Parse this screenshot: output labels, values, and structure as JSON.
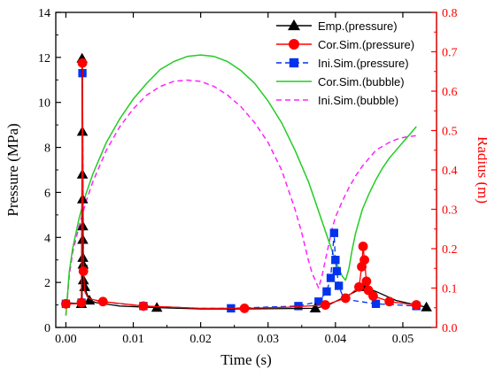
{
  "chart_data": {
    "type": "line",
    "xlabel": "Time (s)",
    "ylabel_left": "Pressure (MPa)",
    "ylabel_right": "Radius (m)",
    "xlim": [
      -0.0015,
      0.055
    ],
    "ylim_left": [
      0,
      14
    ],
    "ylim_right": [
      0,
      0.8
    ],
    "x_ticks": [
      0.0,
      0.01,
      0.02,
      0.03,
      0.04,
      0.05
    ],
    "x_tick_labels": [
      "0.00",
      "0.01",
      "0.02",
      "0.03",
      "0.04",
      "0.05"
    ],
    "y_left_ticks": [
      0,
      2,
      4,
      6,
      8,
      10,
      12,
      14
    ],
    "y_left_tick_labels": [
      "0",
      "2",
      "4",
      "6",
      "8",
      "10",
      "12",
      "14"
    ],
    "y_right_ticks": [
      0.0,
      0.1,
      0.2,
      0.3,
      0.4,
      0.5,
      0.6,
      0.7,
      0.8
    ],
    "y_right_tick_labels": [
      "0.0",
      "0.1",
      "0.2",
      "0.3",
      "0.4",
      "0.5",
      "0.6",
      "0.7",
      "0.8"
    ],
    "grid": false,
    "legend_position": "top-right",
    "colors": {
      "left_axis": "#000000",
      "right_axis": "#ff0000"
    },
    "series": [
      {
        "name": "Emp.(pressure)",
        "axis": "left",
        "color": "#000000",
        "line_style": "solid",
        "marker": "triangle",
        "x": [
          0.0,
          0.0023,
          0.0024,
          0.0024,
          0.00245,
          0.00245,
          0.00248,
          0.0025,
          0.0025,
          0.00252,
          0.00255,
          0.0026,
          0.0028,
          0.003,
          0.0035,
          0.0045,
          0.008,
          0.0135,
          0.02,
          0.0265,
          0.037,
          0.039,
          0.041,
          0.043,
          0.0442,
          0.046,
          0.049,
          0.052,
          0.0535
        ],
        "y": [
          1.1,
          1.05,
          1.05,
          11.95,
          8.7,
          6.8,
          5.7,
          4.5,
          3.9,
          3.1,
          2.8,
          2.1,
          1.8,
          1.6,
          1.2,
          1.1,
          0.95,
          0.88,
          0.82,
          0.82,
          0.85,
          1.0,
          1.3,
          1.6,
          1.8,
          1.6,
          1.2,
          1.0,
          0.9
        ],
        "marker_x": [
          0.0023,
          0.0024,
          0.00245,
          0.00245,
          0.00248,
          0.0025,
          0.0025,
          0.00252,
          0.00255,
          0.0026,
          0.0028,
          0.0035,
          0.0135,
          0.037,
          0.0442,
          0.0535
        ],
        "marker_y": [
          1.05,
          11.95,
          8.7,
          6.8,
          5.7,
          4.5,
          3.9,
          3.1,
          2.8,
          2.1,
          1.8,
          1.2,
          0.88,
          0.85,
          1.8,
          0.9
        ]
      },
      {
        "name": "Cor.Sim.(pressure)",
        "axis": "left",
        "color": "#ff0000",
        "line_style": "solid",
        "marker": "circle",
        "x": [
          0.0,
          0.0021,
          0.0023,
          0.00245,
          0.0026,
          0.0028,
          0.0032,
          0.0038,
          0.0055,
          0.0115,
          0.02,
          0.0265,
          0.033,
          0.0385,
          0.0415,
          0.0435,
          0.0439,
          0.0441,
          0.0443,
          0.0446,
          0.0449,
          0.0456,
          0.048,
          0.052
        ],
        "y": [
          1.05,
          1.05,
          1.1,
          11.75,
          2.5,
          1.6,
          1.35,
          1.25,
          1.15,
          0.95,
          0.85,
          0.85,
          0.9,
          1.0,
          1.3,
          1.8,
          2.7,
          3.6,
          3.0,
          2.05,
          1.65,
          1.4,
          1.15,
          1.0
        ],
        "marker_x": [
          0.0,
          0.0023,
          0.00245,
          0.0026,
          0.0055,
          0.0115,
          0.0265,
          0.0385,
          0.0415,
          0.0435,
          0.0439,
          0.0441,
          0.0443,
          0.0446,
          0.0449,
          0.0456,
          0.048,
          0.052
        ],
        "marker_y": [
          1.05,
          1.1,
          11.75,
          2.5,
          1.15,
          0.95,
          0.85,
          1.0,
          1.3,
          1.8,
          2.7,
          3.6,
          3.0,
          2.05,
          1.65,
          1.4,
          1.15,
          1.0
        ]
      },
      {
        "name": "Ini.Sim.(pressure)",
        "axis": "left",
        "color": "#0033ee",
        "line_style": "dash",
        "marker": "square",
        "x": [
          0.0,
          0.0021,
          0.00232,
          0.00245,
          0.0026,
          0.0028,
          0.0035,
          0.005,
          0.0115,
          0.02,
          0.0245,
          0.0345,
          0.0375,
          0.0387,
          0.0393,
          0.0398,
          0.04,
          0.0402,
          0.0405,
          0.041,
          0.0425,
          0.046,
          0.052
        ],
        "y": [
          1.05,
          1.05,
          1.1,
          11.3,
          2.6,
          1.7,
          1.3,
          1.15,
          0.95,
          0.85,
          0.85,
          0.95,
          1.15,
          1.6,
          2.2,
          4.2,
          3.0,
          2.5,
          1.85,
          1.45,
          1.2,
          1.05,
          0.95
        ],
        "marker_x": [
          0.0,
          0.00232,
          0.00245,
          0.0026,
          0.0115,
          0.0245,
          0.0345,
          0.0375,
          0.0387,
          0.0393,
          0.0398,
          0.04,
          0.0402,
          0.0405,
          0.046,
          0.052
        ],
        "marker_y": [
          1.05,
          1.1,
          11.3,
          2.6,
          0.95,
          0.85,
          0.95,
          1.15,
          1.6,
          2.2,
          4.2,
          3.0,
          2.5,
          1.85,
          1.05,
          0.95
        ]
      },
      {
        "name": "Cor.Sim.(bubble)",
        "axis": "right",
        "color": "#22cc22",
        "line_style": "solid",
        "marker": "none",
        "x": [
          0.0,
          0.0005,
          0.001,
          0.002,
          0.003,
          0.004,
          0.005,
          0.006,
          0.008,
          0.01,
          0.012,
          0.014,
          0.016,
          0.018,
          0.02,
          0.022,
          0.024,
          0.026,
          0.028,
          0.03,
          0.032,
          0.034,
          0.036,
          0.038,
          0.039,
          0.04,
          0.041,
          0.0415,
          0.042,
          0.0425,
          0.043,
          0.0435,
          0.044,
          0.045,
          0.046,
          0.047,
          0.048,
          0.049,
          0.05,
          0.051,
          0.052
        ],
        "y": [
          0.03,
          0.14,
          0.2,
          0.28,
          0.34,
          0.39,
          0.43,
          0.47,
          0.53,
          0.58,
          0.62,
          0.655,
          0.675,
          0.688,
          0.692,
          0.688,
          0.675,
          0.652,
          0.62,
          0.575,
          0.52,
          0.45,
          0.37,
          0.27,
          0.22,
          0.17,
          0.13,
          0.12,
          0.15,
          0.2,
          0.24,
          0.27,
          0.3,
          0.34,
          0.375,
          0.405,
          0.43,
          0.45,
          0.47,
          0.49,
          0.51
        ]
      },
      {
        "name": "Ini.Sim.(bubble)",
        "axis": "right",
        "color": "#ff22ff",
        "line_style": "dash",
        "marker": "none",
        "x": [
          0.0,
          0.0005,
          0.001,
          0.002,
          0.003,
          0.004,
          0.005,
          0.006,
          0.008,
          0.01,
          0.012,
          0.014,
          0.016,
          0.018,
          0.02,
          0.022,
          0.024,
          0.026,
          0.028,
          0.03,
          0.032,
          0.034,
          0.035,
          0.036,
          0.0365,
          0.037,
          0.0375,
          0.038,
          0.0385,
          0.039,
          0.0395,
          0.04,
          0.041,
          0.042,
          0.043,
          0.044,
          0.045,
          0.046,
          0.047,
          0.048,
          0.049,
          0.05,
          0.051,
          0.052
        ],
        "y": [
          0.03,
          0.13,
          0.19,
          0.26,
          0.32,
          0.37,
          0.41,
          0.45,
          0.51,
          0.555,
          0.59,
          0.612,
          0.625,
          0.628,
          0.625,
          0.612,
          0.59,
          0.56,
          0.52,
          0.47,
          0.4,
          0.3,
          0.24,
          0.17,
          0.14,
          0.12,
          0.1,
          0.13,
          0.17,
          0.21,
          0.25,
          0.28,
          0.32,
          0.355,
          0.385,
          0.41,
          0.43,
          0.45,
          0.46,
          0.47,
          0.477,
          0.482,
          0.485,
          0.487
        ]
      }
    ]
  }
}
